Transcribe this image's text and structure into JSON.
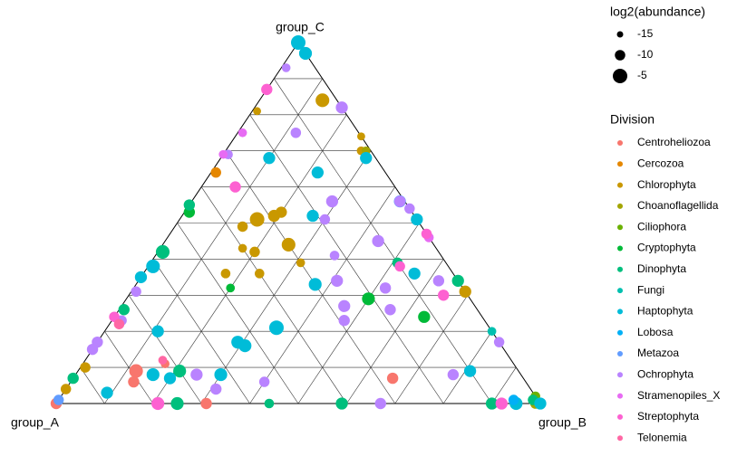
{
  "chart_data": {
    "type": "ternary",
    "vertices": [
      "group_A",
      "group_B",
      "group_C"
    ],
    "grid": true,
    "size_legend": {
      "title": "log2(abundance)",
      "ticks": [
        -15,
        -10,
        -5
      ]
    },
    "legend_title": "Division",
    "series": [
      {
        "name": "Centroheliozoa",
        "color": "#F8766D",
        "a": [
          79,
          81,
          72,
          69,
          27,
          100
        ],
        "b": [
          12,
          13,
          17,
          31,
          66,
          0
        ],
        "c": [
          9,
          6,
          11,
          0,
          7,
          0
        ],
        "size": [
          -6,
          -9,
          -12,
          -9,
          -9,
          -9
        ]
      },
      {
        "name": "Cercozoa",
        "color": "#E58700",
        "a": [
          35
        ],
        "b": [
          1
        ],
        "c": [
          64
        ],
        "size": [
          -10
        ]
      },
      {
        "name": "Chlorophyta",
        "color": "#C99800",
        "a": [
          3,
          33,
          29,
          27,
          37,
          30,
          38,
          40,
          47,
          40,
          30,
          2,
          0,
          89,
          96,
          18,
          0
        ],
        "b": [
          13,
          16,
          19,
          20,
          14,
          26,
          20,
          24,
          17,
          17,
          31,
          28,
          69,
          1,
          0,
          1,
          26
        ],
        "c": [
          84,
          51,
          52,
          53,
          49,
          44,
          42,
          36,
          36,
          43,
          39,
          70,
          31,
          10,
          4,
          81,
          74
        ],
        "size": [
          -6,
          -5,
          -8,
          -9,
          -10,
          -6,
          -10,
          -11,
          -11,
          -12,
          -12,
          -12,
          -8,
          -10,
          -10,
          -13,
          -13
        ]
      },
      {
        "name": "Choanoflagellida",
        "color": "#A3A500",
        "a": [
          1,
          1
        ],
        "b": [
          29,
          99
        ],
        "c": [
          70,
          0
        ],
        "size": [
          -12,
          -10
        ]
      },
      {
        "name": "Ciliophora",
        "color": "#6BB100",
        "a": [
          0
        ],
        "b": [
          98
        ],
        "c": [
          2
        ],
        "size": [
          -11
        ]
      },
      {
        "name": "Cryptophyta",
        "color": "#00BA38",
        "a": [
          21,
          12,
          48,
          46
        ],
        "b": [
          50,
          64,
          20,
          1
        ],
        "c": [
          29,
          24,
          32,
          53
        ],
        "size": [
          -7,
          -8,
          -12,
          -9
        ]
      },
      {
        "name": "Dinophyta",
        "color": "#00BF7D",
        "a": [
          57,
          70,
          75,
          41,
          56,
          0,
          45,
          73,
          10,
          10,
          1,
          93
        ],
        "b": [
          1,
          21,
          25,
          59,
          44,
          66,
          0,
          1,
          51,
          90,
          98,
          0
        ],
        "c": [
          42,
          9,
          0,
          0,
          0,
          34,
          55,
          26,
          39,
          0,
          1,
          7
        ],
        "size": [
          -6,
          -7,
          -7,
          -8,
          -11,
          -8,
          -9,
          -9,
          -10,
          -8,
          -10,
          -9
        ]
      },
      {
        "name": "Fungi",
        "color": "#00C0AF",
        "a": [
          0
        ],
        "b": [
          80
        ],
        "c": [
          20
        ],
        "size": [
          -12
        ]
      },
      {
        "name": "Haptophyta",
        "color": "#00BCD8",
        "a": [
          44,
          53,
          54,
          62,
          30,
          21,
          14,
          22,
          2,
          0,
          8,
          61,
          69,
          73,
          76,
          88,
          10,
          5,
          0,
          0,
          65,
          0
        ],
        "b": [
          35,
          31,
          29,
          30,
          37,
          27,
          22,
          10,
          30,
          49,
          56,
          1,
          11,
          20,
          16,
          9,
          81,
          95,
          0,
          3,
          0,
          100
        ],
        "c": [
          21,
          16,
          17,
          8,
          33,
          52,
          64,
          68,
          68,
          51,
          36,
          38,
          20,
          7,
          8,
          3,
          9,
          0,
          100,
          97,
          35,
          0
        ],
        "size": [
          -5,
          -7,
          -7,
          -7,
          -7,
          -8,
          -8,
          -8,
          -8,
          -8,
          -8,
          -6,
          -8,
          -8,
          -7,
          -8,
          -8,
          -7,
          -5,
          -7,
          -8,
          -8
        ]
      },
      {
        "name": "Lobosa",
        "color": "#00B0F6",
        "a": [
          5
        ],
        "b": [
          94
        ],
        "c": [
          1
        ],
        "size": [
          -10
        ]
      },
      {
        "name": "Metazoa",
        "color": "#619CFF",
        "a": [
          1,
          99
        ],
        "b": [
          43,
          0
        ],
        "c": [
          56,
          1
        ],
        "size": [
          -8,
          -10
        ]
      },
      {
        "name": "Ochrophyta",
        "color": "#B983FF",
        "a": [
          0,
          13,
          15,
          19,
          11,
          22,
          25,
          27,
          29,
          18,
          16,
          4,
          0,
          1,
          67,
          65,
          54,
          33,
          14,
          0,
          83,
          85,
          68,
          75,
          30,
          6
        ],
        "b": [
          18,
          12,
          29,
          30,
          44,
          37,
          41,
          46,
          48,
          56,
          52,
          62,
          46,
          43,
          25,
          31,
          40,
          67,
          78,
          83,
          0,
          0,
          1,
          2,
          1,
          1
        ],
        "c": [
          82,
          75,
          56,
          51,
          45,
          41,
          34,
          27,
          23,
          26,
          32,
          34,
          54,
          56,
          8,
          4,
          6,
          0,
          8,
          17,
          17,
          15,
          31,
          23,
          69,
          93
        ],
        "size": [
          -8,
          -10,
          -8,
          -10,
          -8,
          -11,
          -8,
          -8,
          -9,
          -9,
          -9,
          -9,
          -10,
          -9,
          -8,
          -9,
          -10,
          -9,
          -9,
          -10,
          -9,
          -9,
          -10,
          -10,
          -11,
          -12
        ]
      },
      {
        "name": "Stramenopiles_X",
        "color": "#E76BF3",
        "a": [
          31,
          24,
          0
        ],
        "b": [
          0,
          1,
          54
        ],
        "c": [
          69,
          75,
          46
        ],
        "size": [
          -12,
          -12,
          -11
        ]
      },
      {
        "name": "Streptophyta",
        "color": "#FD61D1",
        "a": [
          13,
          33,
          79,
          0,
          10,
          5,
          8,
          76
        ],
        "b": [
          0,
          7,
          21,
          53,
          52,
          65,
          92,
          0
        ],
        "c": [
          87,
          60,
          0,
          47,
          38,
          30,
          0,
          24
        ],
        "size": [
          -9,
          -9,
          -7,
          -10,
          -10,
          -9,
          -8,
          -10
        ]
      },
      {
        "name": "Telonemia",
        "color": "#FF67A4",
        "a": [
          76,
          72
        ],
        "b": [
          2,
          16
        ],
        "c": [
          22,
          12
        ],
        "size": [
          -10,
          -12
        ]
      }
    ]
  }
}
